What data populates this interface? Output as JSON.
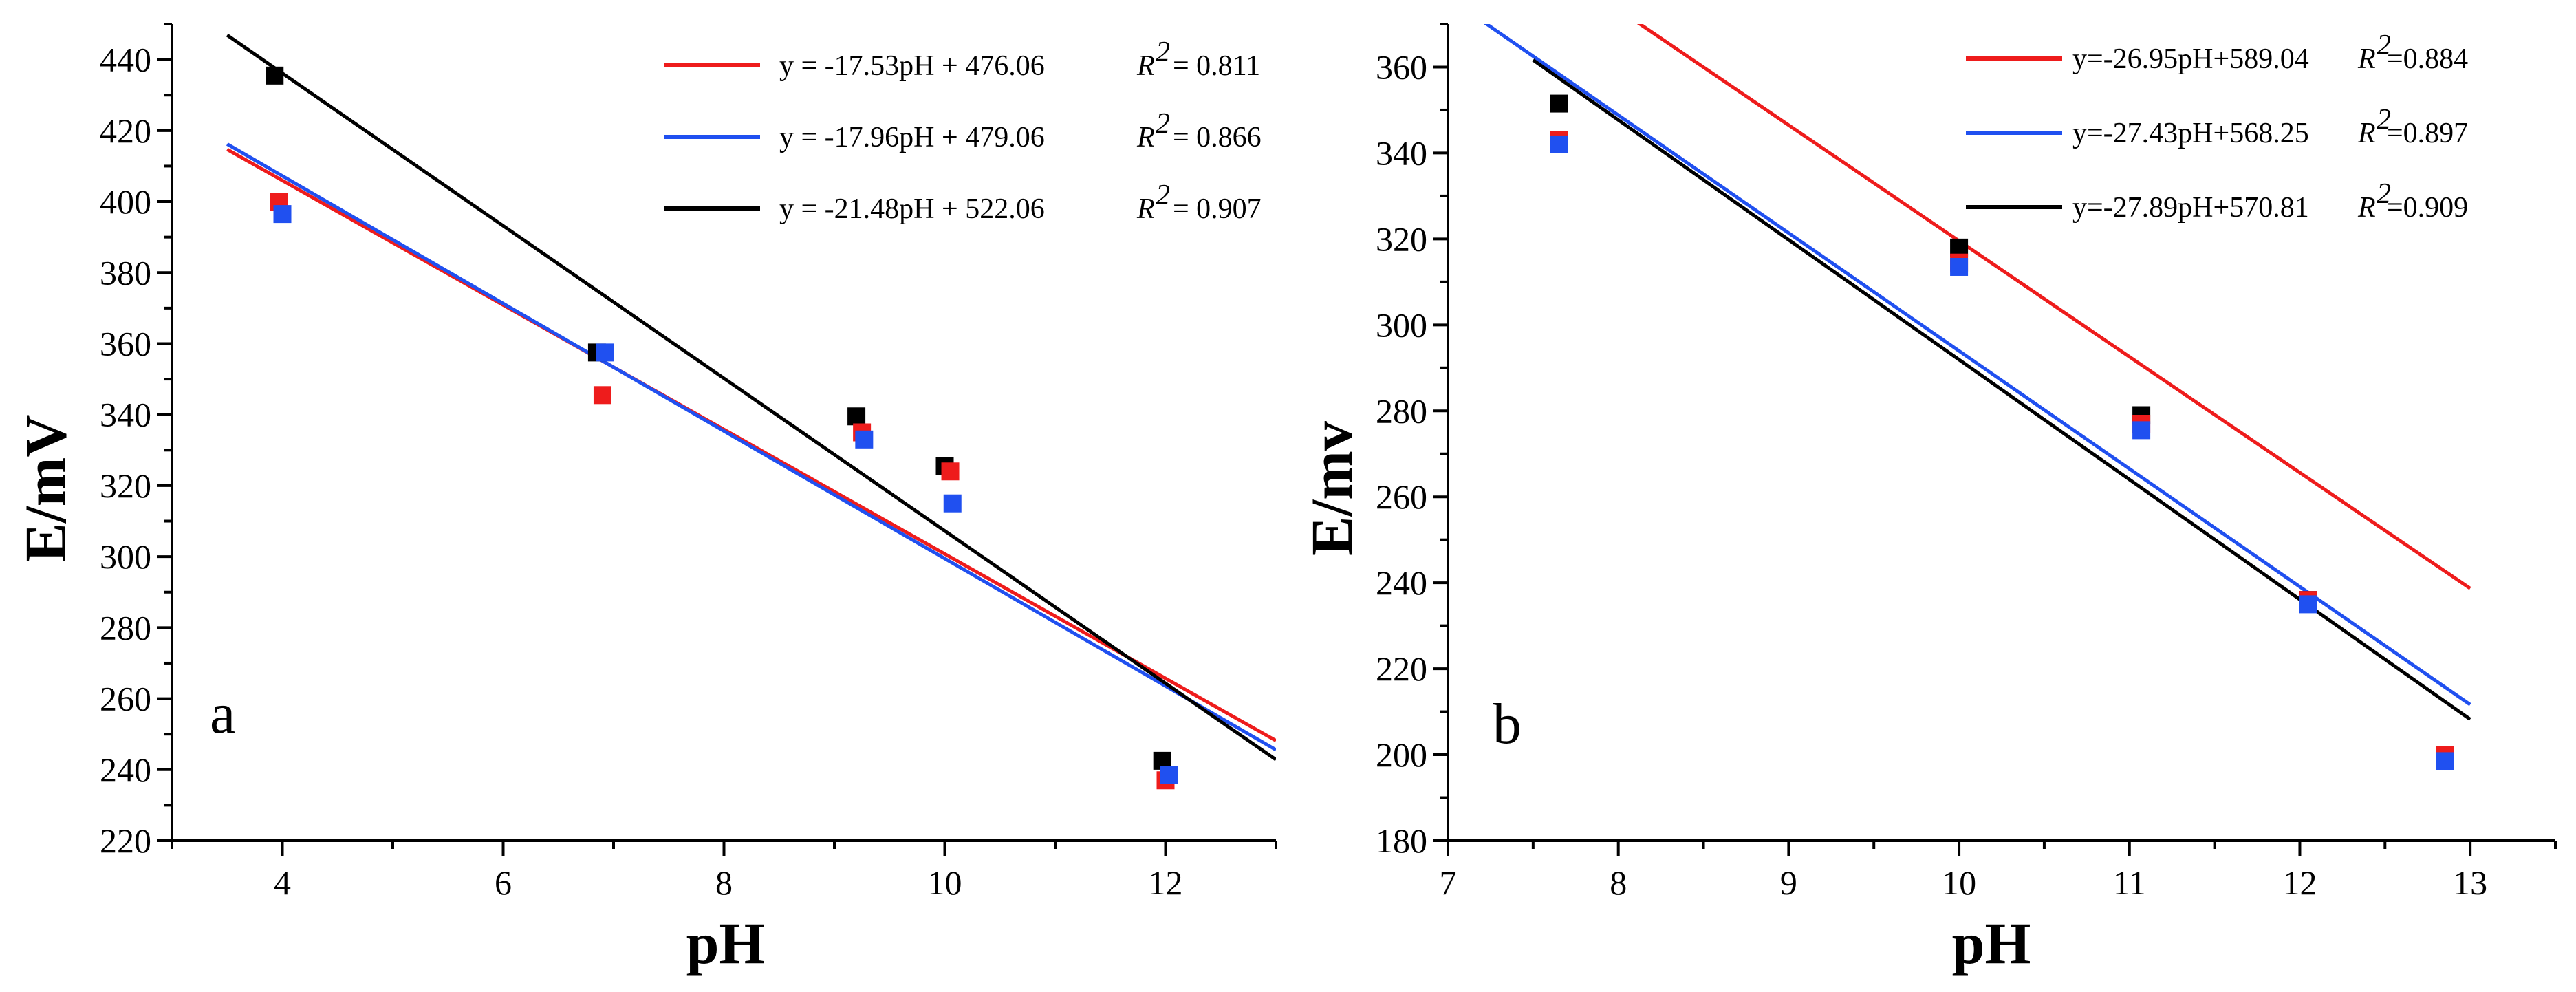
{
  "chart_data": [
    {
      "panel": "a",
      "type": "scatter",
      "xlabel": "pH",
      "ylabel": "E/mV",
      "xlim": [
        3,
        13
      ],
      "ylim": [
        220,
        450
      ],
      "xticks": [
        4,
        6,
        8,
        10,
        12
      ],
      "xtick_labels": [
        "4",
        "6",
        "8",
        "10",
        "12"
      ],
      "yticks": [
        220,
        240,
        260,
        280,
        300,
        320,
        340,
        360,
        380,
        400,
        420,
        440
      ],
      "ytick_labels": [
        "220",
        "240",
        "260",
        "280",
        "300",
        "320",
        "340",
        "360",
        "380",
        "400",
        "420",
        "440"
      ],
      "legend_position": "top-right",
      "series": [
        {
          "name": "red",
          "color": "#ee1c1c",
          "points": [
            [
              3.97,
              400
            ],
            [
              6.9,
              345.5
            ],
            [
              9.25,
              335
            ],
            [
              10.05,
              324
            ],
            [
              12.0,
              237
            ]
          ],
          "fit": {
            "slope": -17.53,
            "intercept": 476.06,
            "x_range": [
              3.5,
              13
            ]
          },
          "legend_eq": "y = -17.53pH + 476.06",
          "legend_r2": "= 0.811"
        },
        {
          "name": "blue",
          "color": "#2050f0",
          "points": [
            [
              4.0,
              396.5
            ],
            [
              6.92,
              357.5
            ],
            [
              9.27,
              333
            ],
            [
              10.07,
              315
            ],
            [
              12.03,
              238.5
            ]
          ],
          "fit": {
            "slope": -17.96,
            "intercept": 479.06,
            "x_range": [
              3.5,
              13
            ]
          },
          "legend_eq": "y = -17.96pH + 479.06",
          "legend_r2": "= 0.866"
        },
        {
          "name": "black",
          "color": "#000000",
          "points": [
            [
              3.93,
              435.5
            ],
            [
              6.85,
              357.5
            ],
            [
              9.2,
              339.5
            ],
            [
              10.0,
              325.5
            ],
            [
              11.97,
              242.5
            ]
          ],
          "fit": {
            "slope": -21.48,
            "intercept": 522.06,
            "x_range": [
              3.5,
              13
            ]
          },
          "legend_eq": "y = -21.48pH + 522.06",
          "legend_r2": "= 0.907"
        }
      ]
    },
    {
      "panel": "b",
      "type": "scatter",
      "xlabel": "pH",
      "ylabel": "E/mv",
      "xlim": [
        7,
        13.5
      ],
      "ylim": [
        180,
        370
      ],
      "xticks": [
        7,
        8,
        9,
        10,
        11,
        12,
        13
      ],
      "xtick_labels": [
        "7",
        "8",
        "9",
        "10",
        "11",
        "12",
        "13"
      ],
      "yticks": [
        180,
        200,
        220,
        240,
        260,
        280,
        300,
        320,
        340,
        360
      ],
      "ytick_labels": [
        "180",
        "200",
        "220",
        "240",
        "260",
        "280",
        "300",
        "320",
        "340",
        "360"
      ],
      "legend_position": "top-right",
      "series": [
        {
          "name": "red",
          "color": "#ee1c1c",
          "points": [
            [
              7.65,
              343
            ],
            [
              10.0,
              314.5
            ],
            [
              11.07,
              277
            ],
            [
              12.05,
              236
            ],
            [
              12.85,
              200
            ]
          ],
          "fit": {
            "slope": -26.95,
            "intercept": 589.04,
            "x_range": [
              7.5,
              13
            ]
          },
          "legend_eq": "y=-26.95pH+589.04",
          "legend_r2": "=0.884"
        },
        {
          "name": "blue",
          "color": "#2050f0",
          "points": [
            [
              7.65,
              342
            ],
            [
              10.0,
              313.5
            ],
            [
              11.07,
              275.5
            ],
            [
              12.05,
              235
            ],
            [
              12.85,
              198.5
            ]
          ],
          "fit": {
            "slope": -27.43,
            "intercept": 568.25,
            "x_range": [
              7.2,
              13
            ]
          },
          "legend_eq": "y=-27.43pH+568.25",
          "legend_r2": "=0.897"
        },
        {
          "name": "black",
          "color": "#000000",
          "points": [
            [
              7.65,
              351.5
            ],
            [
              10.0,
              318
            ],
            [
              11.07,
              279
            ],
            [
              12.05,
              236
            ],
            [
              12.85,
              199
            ]
          ],
          "fit": {
            "slope": -27.89,
            "intercept": 570.81,
            "x_range": [
              7.5,
              13
            ]
          },
          "legend_eq": "y=-27.89pH+570.81",
          "legend_r2": "=0.909"
        }
      ]
    }
  ],
  "labels": {
    "panel_a_letter": "a",
    "panel_b_letter": "b",
    "r2_symbol": "R",
    "r2_power": "2"
  }
}
